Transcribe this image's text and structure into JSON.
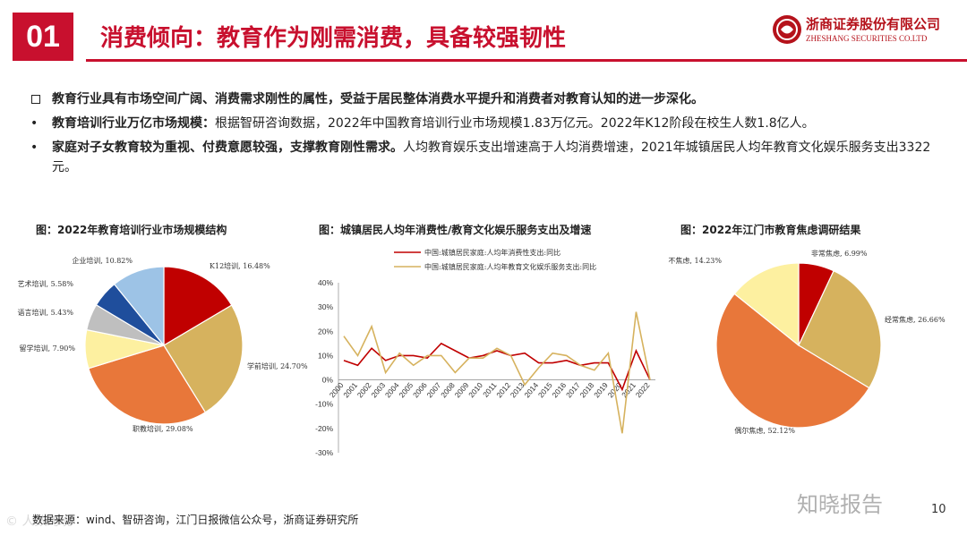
{
  "header": {
    "number": "01",
    "title": "消费倾向：教育作为刚需消费，具备较强韧性",
    "logo_cn": "浙商证券股份有限公司",
    "logo_en": "ZHESHANG SECURITIES CO.LTD"
  },
  "bullets": [
    {
      "bold": "教育行业具有市场空间广阔、消费需求刚性的属性，受益于居民整体消费水平提升和消费者对教育认知的进一步深化。",
      "text": ""
    },
    {
      "bold": "教育培训行业万亿市场规模：",
      "text": "根据智研咨询数据，2022年中国教育培训行业市场规模1.83万亿元。2022年K12阶段在校生人数1.8亿人。"
    },
    {
      "bold": "家庭对子女教育较为重视、付费意愿较强，支撑教育刚性需求。",
      "text": "人均教育娱乐支出增速高于人均消费增速，2021年城镇居民人均年教育文化娱乐服务支出3322元。"
    }
  ],
  "colors": {
    "brand_red": "#c8102e",
    "dark_red": "#b5121b",
    "orange": "#e8773a",
    "tan": "#d6b25e",
    "yellow": "#fdf0a0",
    "gray": "#bfbfbf",
    "navy": "#1f4e9c",
    "lightblue": "#9dc3e6"
  },
  "chart_data": [
    {
      "type": "pie",
      "title": "图：2022年教育培训行业市场规模结构",
      "slices": [
        {
          "label": "K12培训, 16.48%",
          "value": 16.48,
          "color": "#c00000"
        },
        {
          "label": "学前培训, 24.70%",
          "value": 24.7,
          "color": "#d6b25e"
        },
        {
          "label": "职教培训, 29.08%",
          "value": 29.08,
          "color": "#e8773a"
        },
        {
          "label": "留学培训, 7.90%",
          "value": 7.9,
          "color": "#fdf0a0"
        },
        {
          "label": "语言培训, 5.43%",
          "value": 5.43,
          "color": "#bfbfbf"
        },
        {
          "label": "艺术培训, 5.58%",
          "value": 5.58,
          "color": "#1f4e9c"
        },
        {
          "label": "企业培训, 10.82%",
          "value": 10.82,
          "color": "#9dc3e6"
        }
      ]
    },
    {
      "type": "line",
      "title": "图：城镇居民人均年消费性/教育文化娱乐服务支出及增速",
      "x": [
        "2000",
        "2001",
        "2002",
        "2003",
        "2004",
        "2005",
        "2006",
        "2007",
        "2008",
        "2009",
        "2010",
        "2011",
        "2012",
        "2013",
        "2014",
        "2015",
        "2016",
        "2017",
        "2018",
        "2019",
        "2020",
        "2021",
        "2022"
      ],
      "ylim": [
        -30,
        40
      ],
      "yticks": [
        "40%",
        "30%",
        "20%",
        "10%",
        "0%",
        "-10%",
        "-20%",
        "-30%"
      ],
      "series": [
        {
          "name": "中国:城镇居民家庭:人均年消费性支出:同比",
          "color": "#c00000",
          "values": [
            8,
            6,
            13,
            8,
            10,
            10,
            9,
            15,
            12,
            9,
            10,
            12,
            10,
            11,
            7,
            7,
            8,
            6,
            7,
            7,
            -4,
            12,
            0
          ]
        },
        {
          "name": "中国:城镇居民家庭:人均年教育文化娱乐服务支出:同比",
          "color": "#d6b25e",
          "values": [
            18,
            10,
            22,
            3,
            11,
            6,
            10,
            10,
            3,
            9,
            9,
            13,
            10,
            -2,
            5,
            11,
            10,
            6,
            4,
            11,
            -22,
            28,
            0
          ]
        }
      ]
    },
    {
      "type": "pie",
      "title": "图：2022年江门市教育焦虑调研结果",
      "slices": [
        {
          "label": "非常焦虑, 6.99%",
          "value": 6.99,
          "color": "#c00000"
        },
        {
          "label": "经常焦虑, 26.66%",
          "value": 26.66,
          "color": "#d6b25e"
        },
        {
          "label": "偶尔焦虑, 52.12%",
          "value": 52.12,
          "color": "#e8773a"
        },
        {
          "label": "不焦虑, 14.23%",
          "value": 14.23,
          "color": "#fdf0a0"
        }
      ]
    }
  ],
  "footer": {
    "source": "数据来源：wind、智研咨询，江门日报微信公众号，浙商证券研究所",
    "page": "10",
    "watermark_left": "© 人数跨境",
    "watermark_right": "知晓报告"
  }
}
